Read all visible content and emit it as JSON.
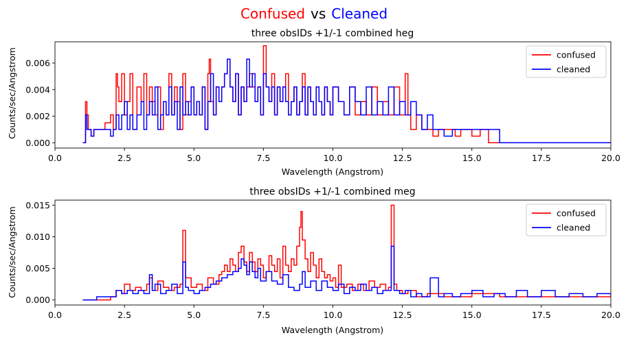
{
  "suptitle": {
    "left": "Confused",
    "mid": "vs",
    "right": "Cleaned",
    "left_color": "#ff0000",
    "mid_color": "#000000",
    "right_color": "#0000ff"
  },
  "chart_data": [
    {
      "type": "line",
      "title": "three obsIDs +1/-1 combined heg",
      "xlabel": "Wavelength (Angstrom)",
      "ylabel": "Counts/sec/Angstrom",
      "xlim": [
        0,
        20
      ],
      "ylim": [
        -0.0004,
        0.0076
      ],
      "xticks": [
        0,
        2.5,
        5,
        7.5,
        10,
        12.5,
        15,
        17.5,
        20
      ],
      "xtick_labels": [
        "0.0",
        "2.5",
        "5.0",
        "7.5",
        "10.0",
        "12.5",
        "15.0",
        "17.5",
        "20.0"
      ],
      "yticks": [
        0,
        0.002,
        0.004,
        0.006
      ],
      "ytick_labels": [
        "0.000",
        "0.002",
        "0.004",
        "0.006"
      ],
      "legend_position": "top-right",
      "series": [
        {
          "name": "confused",
          "color": "#ff0000",
          "x": [
            1.0,
            1.1,
            1.15,
            1.2,
            1.3,
            1.4,
            1.6,
            1.8,
            2.0,
            2.1,
            2.2,
            2.25,
            2.3,
            2.4,
            2.5,
            2.6,
            2.7,
            2.8,
            2.95,
            3.1,
            3.2,
            3.3,
            3.4,
            3.5,
            3.6,
            3.7,
            3.8,
            3.9,
            4.0,
            4.1,
            4.2,
            4.3,
            4.4,
            4.5,
            4.6,
            4.7,
            4.8,
            4.9,
            5.0,
            5.1,
            5.2,
            5.3,
            5.4,
            5.5,
            5.55,
            5.6,
            5.7,
            5.8,
            5.9,
            6.0,
            6.1,
            6.2,
            6.3,
            6.4,
            6.5,
            6.6,
            6.7,
            6.8,
            6.9,
            7.0,
            7.1,
            7.2,
            7.3,
            7.4,
            7.5,
            7.6,
            7.7,
            7.8,
            7.9,
            8.0,
            8.1,
            8.2,
            8.3,
            8.4,
            8.5,
            8.6,
            8.7,
            8.8,
            8.9,
            9.0,
            9.1,
            9.2,
            9.3,
            9.4,
            9.5,
            9.6,
            9.7,
            9.8,
            9.9,
            10.0,
            10.2,
            10.4,
            10.6,
            10.8,
            11.0,
            11.2,
            11.4,
            11.6,
            11.8,
            12.0,
            12.2,
            12.4,
            12.6,
            12.7,
            12.8,
            13.0,
            13.2,
            13.4,
            13.6,
            13.8,
            14.0,
            14.2,
            14.4,
            14.6,
            15.0,
            15.3,
            15.4,
            15.6,
            16.0,
            18.0,
            20.0
          ],
          "values": [
            0.0,
            0.0031,
            0.0021,
            0.001,
            0.0005,
            0.001,
            0.001,
            0.0015,
            0.0021,
            0.001,
            0.0052,
            0.0042,
            0.0031,
            0.0052,
            0.0021,
            0.0031,
            0.0052,
            0.001,
            0.0042,
            0.0031,
            0.0052,
            0.0021,
            0.0042,
            0.0031,
            0.0021,
            0.0042,
            0.001,
            0.0031,
            0.0021,
            0.0052,
            0.0021,
            0.0042,
            0.0031,
            0.001,
            0.0052,
            0.0021,
            0.0031,
            0.0042,
            0.0021,
            0.0031,
            0.0021,
            0.0042,
            0.001,
            0.0052,
            0.0063,
            0.0031,
            0.0021,
            0.0042,
            0.0031,
            0.0042,
            0.0052,
            0.0063,
            0.0042,
            0.0031,
            0.0052,
            0.0021,
            0.0042,
            0.0031,
            0.0042,
            0.0052,
            0.0042,
            0.0031,
            0.0042,
            0.0021,
            0.0073,
            0.0042,
            0.0031,
            0.0052,
            0.0021,
            0.0042,
            0.0031,
            0.0042,
            0.0052,
            0.0021,
            0.0031,
            0.0042,
            0.0021,
            0.0031,
            0.0052,
            0.0021,
            0.0042,
            0.0031,
            0.0021,
            0.0042,
            0.0031,
            0.0021,
            0.0042,
            0.0031,
            0.0021,
            0.0042,
            0.0031,
            0.0021,
            0.0042,
            0.0021,
            0.0031,
            0.0021,
            0.0042,
            0.0021,
            0.0031,
            0.0021,
            0.0042,
            0.0021,
            0.0052,
            0.0021,
            0.001,
            0.0021,
            0.001,
            0.001,
            0.0005,
            0.001,
            0.001,
            0.001,
            0.0005,
            0.001,
            0.0005,
            0.001,
            0.001,
            0.0,
            0.0,
            0.0,
            0.0
          ]
        },
        {
          "name": "cleaned",
          "color": "#0000ff",
          "x": [
            1.0,
            1.1,
            1.15,
            1.2,
            1.3,
            1.4,
            1.6,
            1.8,
            2.0,
            2.1,
            2.2,
            2.3,
            2.4,
            2.5,
            2.6,
            2.7,
            2.8,
            2.95,
            3.1,
            3.2,
            3.3,
            3.4,
            3.5,
            3.6,
            3.7,
            3.8,
            3.9,
            4.0,
            4.1,
            4.2,
            4.3,
            4.4,
            4.5,
            4.6,
            4.7,
            4.8,
            4.9,
            5.0,
            5.1,
            5.2,
            5.3,
            5.4,
            5.5,
            5.6,
            5.7,
            5.8,
            5.9,
            6.0,
            6.1,
            6.2,
            6.3,
            6.4,
            6.5,
            6.6,
            6.7,
            6.8,
            6.9,
            7.0,
            7.1,
            7.2,
            7.3,
            7.4,
            7.5,
            7.6,
            7.7,
            7.8,
            7.9,
            8.0,
            8.1,
            8.2,
            8.3,
            8.4,
            8.5,
            8.6,
            8.7,
            8.8,
            8.9,
            9.0,
            9.1,
            9.2,
            9.3,
            9.4,
            9.5,
            9.6,
            9.7,
            9.8,
            9.9,
            10.0,
            10.2,
            10.4,
            10.6,
            10.8,
            11.0,
            11.2,
            11.4,
            11.6,
            11.8,
            12.0,
            12.2,
            12.4,
            12.6,
            12.8,
            13.0,
            13.2,
            13.4,
            13.6,
            13.8,
            14.0,
            14.3,
            16.0,
            18.0,
            20.0
          ],
          "values": [
            0.0,
            0.0021,
            0.001,
            0.001,
            0.0005,
            0.001,
            0.001,
            0.001,
            0.0005,
            0.001,
            0.0021,
            0.001,
            0.0021,
            0.0031,
            0.001,
            0.0021,
            0.001,
            0.0021,
            0.0031,
            0.001,
            0.0021,
            0.0031,
            0.0021,
            0.0042,
            0.001,
            0.0021,
            0.0031,
            0.0021,
            0.0042,
            0.0021,
            0.0031,
            0.001,
            0.0042,
            0.0021,
            0.0031,
            0.0021,
            0.0042,
            0.0021,
            0.0031,
            0.0021,
            0.0042,
            0.001,
            0.0031,
            0.0052,
            0.0021,
            0.0042,
            0.0031,
            0.0042,
            0.0052,
            0.0063,
            0.0042,
            0.0031,
            0.0052,
            0.0021,
            0.0042,
            0.0031,
            0.0063,
            0.0042,
            0.0052,
            0.0031,
            0.0042,
            0.0021,
            0.0052,
            0.0042,
            0.0031,
            0.0042,
            0.0021,
            0.0042,
            0.0031,
            0.0042,
            0.0031,
            0.0021,
            0.0031,
            0.0042,
            0.0021,
            0.0031,
            0.0042,
            0.0021,
            0.0042,
            0.0031,
            0.0021,
            0.0042,
            0.0031,
            0.0021,
            0.0042,
            0.0031,
            0.0021,
            0.0042,
            0.0031,
            0.0021,
            0.0042,
            0.0031,
            0.0021,
            0.0042,
            0.0021,
            0.0031,
            0.0021,
            0.0042,
            0.0021,
            0.0031,
            0.0021,
            0.0031,
            0.0021,
            0.001,
            0.0021,
            0.001,
            0.001,
            0.0005,
            0.001,
            0.0,
            0.0,
            0.0
          ]
        }
      ]
    },
    {
      "type": "line",
      "title": "three obsIDs +1/-1 combined meg",
      "xlabel": "Wavelength (Angstrom)",
      "ylabel": "Counts/sec/Angstrom",
      "xlim": [
        0,
        20
      ],
      "ylim": [
        -0.0008,
        0.0158
      ],
      "xticks": [
        0,
        2.5,
        5,
        7.5,
        10,
        12.5,
        15,
        17.5,
        20
      ],
      "xtick_labels": [
        "0.0",
        "2.5",
        "5.0",
        "7.5",
        "10.0",
        "12.5",
        "15.0",
        "17.5",
        "20.0"
      ],
      "yticks": [
        0,
        0.005,
        0.01,
        0.015
      ],
      "ytick_labels": [
        "0.000",
        "0.005",
        "0.010",
        "0.015"
      ],
      "legend_position": "top-right",
      "series": [
        {
          "name": "confused",
          "color": "#ff0000",
          "x": [
            1.0,
            1.5,
            2.0,
            2.2,
            2.4,
            2.5,
            2.7,
            2.9,
            3.1,
            3.3,
            3.4,
            3.5,
            3.7,
            3.9,
            4.1,
            4.3,
            4.5,
            4.6,
            4.7,
            4.9,
            5.1,
            5.3,
            5.5,
            5.7,
            5.9,
            6.0,
            6.1,
            6.2,
            6.3,
            6.4,
            6.5,
            6.6,
            6.7,
            6.8,
            6.9,
            7.0,
            7.1,
            7.2,
            7.3,
            7.4,
            7.5,
            7.6,
            7.7,
            7.8,
            7.9,
            8.0,
            8.1,
            8.2,
            8.3,
            8.4,
            8.5,
            8.6,
            8.7,
            8.8,
            8.85,
            8.9,
            9.0,
            9.1,
            9.2,
            9.3,
            9.4,
            9.5,
            9.6,
            9.7,
            9.8,
            9.9,
            10.0,
            10.1,
            10.2,
            10.3,
            10.5,
            10.7,
            10.9,
            11.1,
            11.3,
            11.5,
            11.7,
            11.9,
            12.0,
            12.1,
            12.2,
            12.3,
            12.5,
            12.7,
            13.0,
            13.4,
            14.0,
            15.0,
            16.0,
            17.0,
            18.0,
            19.0,
            20.0
          ],
          "values": [
            0.0,
            0.0,
            0.0005,
            0.0015,
            0.001,
            0.0025,
            0.0015,
            0.002,
            0.0015,
            0.0025,
            0.0035,
            0.0015,
            0.003,
            0.002,
            0.0015,
            0.002,
            0.0025,
            0.011,
            0.0035,
            0.002,
            0.0025,
            0.0015,
            0.0035,
            0.0025,
            0.004,
            0.0045,
            0.0055,
            0.0045,
            0.0065,
            0.0055,
            0.0045,
            0.0075,
            0.0085,
            0.006,
            0.0045,
            0.0075,
            0.006,
            0.0045,
            0.0065,
            0.0055,
            0.0035,
            0.0045,
            0.007,
            0.0055,
            0.0045,
            0.0065,
            0.0035,
            0.0085,
            0.0055,
            0.0045,
            0.0065,
            0.0055,
            0.0085,
            0.0115,
            0.014,
            0.0095,
            0.0065,
            0.0045,
            0.0075,
            0.0055,
            0.0035,
            0.0065,
            0.0045,
            0.0035,
            0.004,
            0.003,
            0.0035,
            0.002,
            0.0055,
            0.002,
            0.0025,
            0.0015,
            0.0025,
            0.0015,
            0.003,
            0.002,
            0.0025,
            0.0015,
            0.002,
            0.015,
            0.0025,
            0.0015,
            0.001,
            0.0015,
            0.0005,
            0.001,
            0.0005,
            0.001,
            0.0005,
            0.0005,
            0.0005,
            0.0005,
            0.0005
          ]
        },
        {
          "name": "cleaned",
          "color": "#0000ff",
          "x": [
            1.0,
            1.5,
            2.0,
            2.2,
            2.4,
            2.6,
            2.8,
            3.0,
            3.2,
            3.4,
            3.5,
            3.6,
            3.8,
            4.0,
            4.2,
            4.4,
            4.6,
            4.7,
            4.8,
            5.0,
            5.2,
            5.4,
            5.6,
            5.8,
            6.0,
            6.2,
            6.4,
            6.6,
            6.7,
            6.8,
            6.9,
            7.0,
            7.1,
            7.2,
            7.3,
            7.4,
            7.6,
            7.8,
            8.0,
            8.2,
            8.4,
            8.6,
            8.8,
            8.9,
            9.0,
            9.2,
            9.4,
            9.6,
            9.8,
            10.0,
            10.2,
            10.4,
            10.6,
            10.8,
            11.0,
            11.2,
            11.4,
            11.6,
            11.8,
            12.0,
            12.1,
            12.2,
            12.4,
            12.6,
            12.8,
            13.0,
            13.2,
            13.5,
            13.8,
            14.0,
            14.3,
            14.6,
            15.0,
            15.4,
            15.8,
            16.2,
            16.6,
            17.0,
            17.5,
            18.0,
            18.5,
            19.0,
            19.5,
            20.0
          ],
          "values": [
            0.0,
            0.0005,
            0.0005,
            0.0015,
            0.001,
            0.0015,
            0.001,
            0.0015,
            0.001,
            0.004,
            0.0015,
            0.0025,
            0.001,
            0.0015,
            0.0025,
            0.001,
            0.006,
            0.002,
            0.0015,
            0.001,
            0.0015,
            0.002,
            0.0025,
            0.003,
            0.0035,
            0.004,
            0.0045,
            0.005,
            0.0065,
            0.0055,
            0.004,
            0.006,
            0.0045,
            0.0035,
            0.005,
            0.003,
            0.0045,
            0.003,
            0.0025,
            0.004,
            0.002,
            0.0015,
            0.0025,
            0.0045,
            0.002,
            0.003,
            0.0015,
            0.003,
            0.002,
            0.0015,
            0.0025,
            0.001,
            0.002,
            0.0015,
            0.0025,
            0.0015,
            0.002,
            0.001,
            0.0015,
            0.0015,
            0.0085,
            0.0015,
            0.001,
            0.0015,
            0.0005,
            0.001,
            0.0005,
            0.0035,
            0.0005,
            0.001,
            0.0005,
            0.001,
            0.0015,
            0.0005,
            0.001,
            0.0005,
            0.0015,
            0.0005,
            0.0015,
            0.0005,
            0.001,
            0.0005,
            0.001,
            0.0005
          ]
        }
      ]
    }
  ]
}
